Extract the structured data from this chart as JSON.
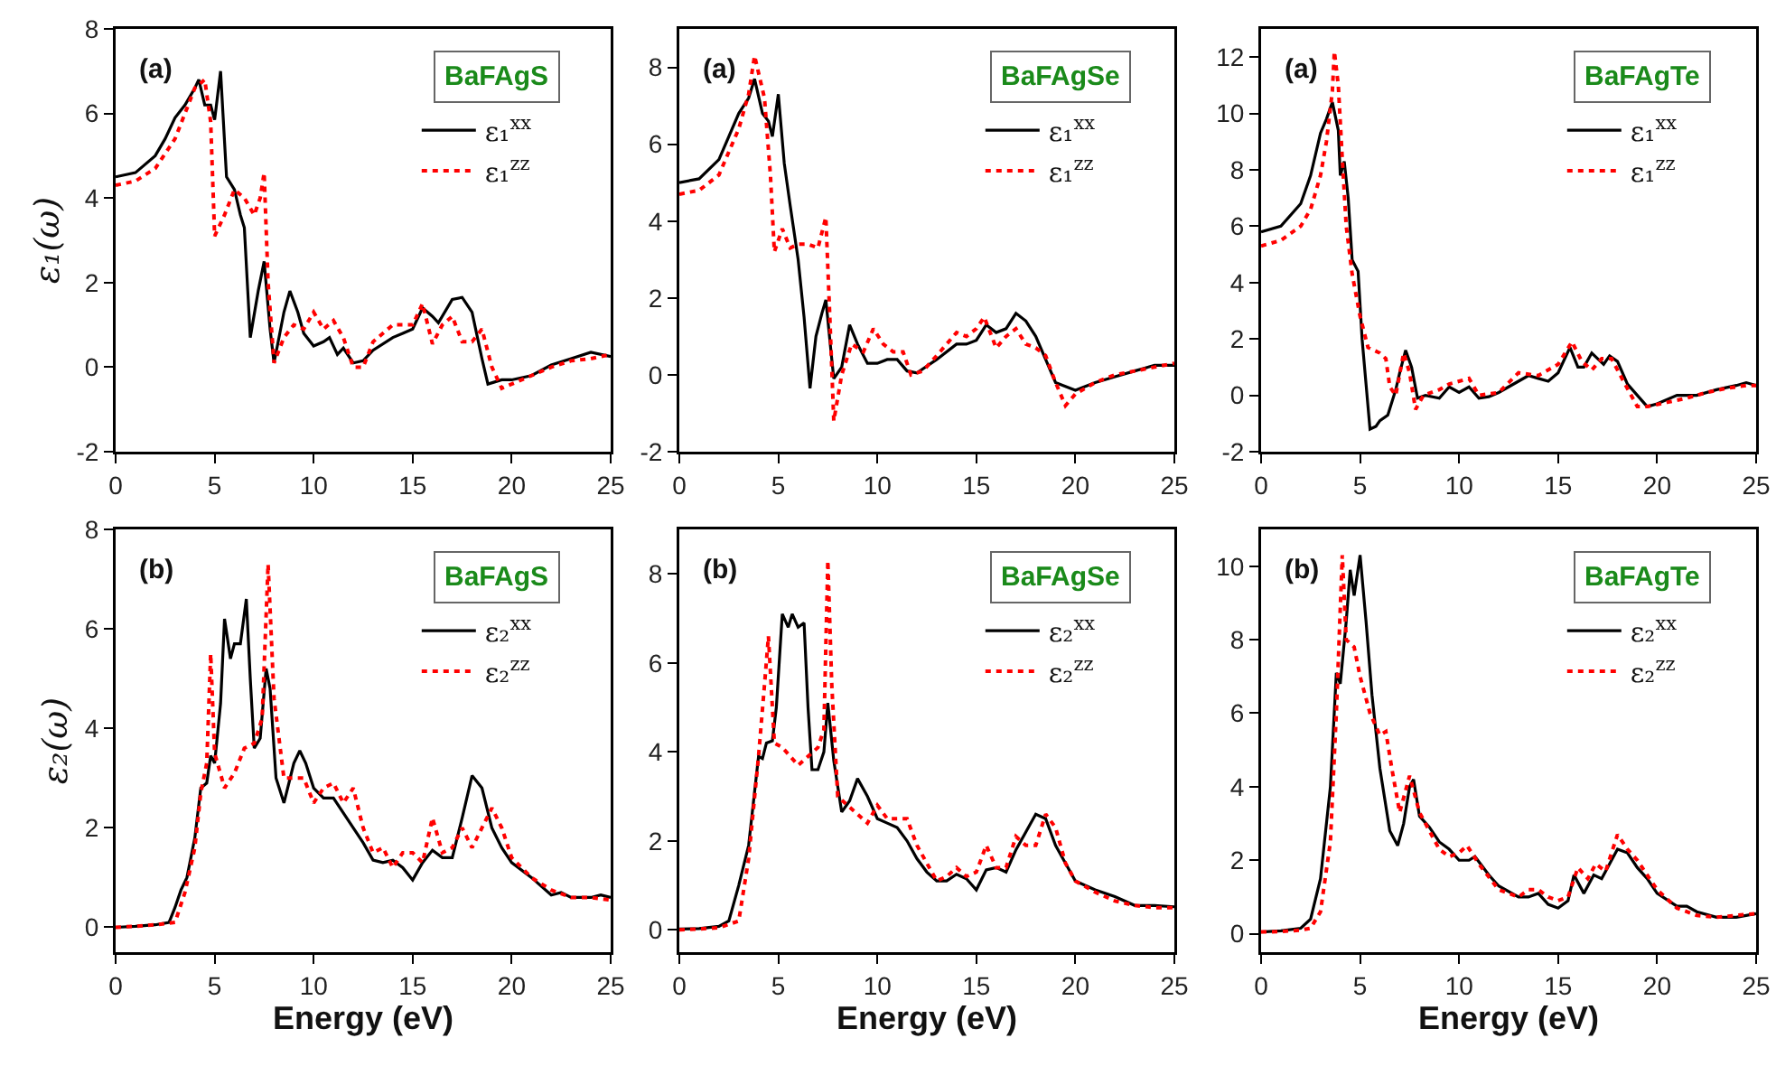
{
  "chart_data": [
    {
      "type": "line",
      "ylabel": "ε₁(ω)",
      "annotations": [
        "(a)",
        "BaFAgS"
      ],
      "xlim": [
        0,
        25
      ],
      "xticks": [
        0,
        5,
        10,
        15,
        20,
        25
      ],
      "ylim": [
        -2,
        8
      ],
      "yticks": [
        -2,
        0,
        2,
        4,
        6,
        8
      ],
      "grid": false,
      "legend": "top right",
      "series": [
        {
          "name": "ε₁$^{xx}$",
          "color": "#000000",
          "line_style": "solid",
          "x": [
            0,
            1,
            2,
            2.5,
            3,
            3.5,
            4,
            4.2,
            4.5,
            4.8,
            5,
            5.3,
            5.6,
            6,
            6.3,
            6.5,
            6.8,
            7.2,
            7.5,
            7.8,
            8,
            8.5,
            8.8,
            9.2,
            9.5,
            10,
            10.5,
            10.8,
            11.2,
            11.5,
            12,
            12.5,
            13,
            14,
            14.5,
            15,
            15.5,
            16,
            16.3,
            17,
            17.5,
            18,
            18.5,
            18.8,
            19.5,
            20,
            21,
            22,
            23,
            24,
            25
          ],
          "values": [
            4.5,
            4.6,
            5.0,
            5.4,
            5.9,
            6.2,
            6.6,
            6.8,
            6.2,
            6.2,
            5.85,
            7.0,
            4.5,
            4.2,
            3.6,
            3.3,
            0.7,
            1.8,
            2.5,
            0.9,
            0.1,
            1.3,
            1.8,
            1.3,
            0.8,
            0.5,
            0.6,
            0.7,
            0.3,
            0.45,
            0.1,
            0.15,
            0.4,
            0.7,
            0.8,
            0.9,
            1.4,
            1.2,
            1.05,
            1.6,
            1.65,
            1.3,
            0.2,
            -0.4,
            -0.3,
            -0.3,
            -0.2,
            0.05,
            0.2,
            0.35,
            0.25
          ]
        },
        {
          "name": "ε₁$^{zz}$",
          "color": "#ff0000",
          "line_style": "dotted",
          "x": [
            0,
            1,
            2,
            3,
            3.5,
            4,
            4.5,
            4.8,
            5,
            5.5,
            6,
            6.5,
            7,
            7.3,
            7.5,
            7.7,
            8,
            8.5,
            9,
            9.5,
            10,
            10.5,
            11,
            11.5,
            12,
            12.5,
            13,
            14,
            14.5,
            15,
            15.5,
            16,
            16.5,
            17,
            17.5,
            18,
            18.5,
            19,
            19.5,
            20,
            21,
            22,
            23,
            24,
            25
          ],
          "values": [
            4.3,
            4.4,
            4.7,
            5.4,
            6.0,
            6.6,
            6.8,
            5.8,
            3.1,
            3.6,
            4.2,
            4.0,
            3.6,
            4.0,
            4.6,
            2.0,
            0.1,
            0.7,
            1.0,
            0.9,
            1.3,
            0.9,
            1.1,
            0.7,
            0.0,
            0.0,
            0.6,
            1.0,
            1.0,
            1.0,
            1.5,
            0.55,
            1.0,
            1.2,
            0.6,
            0.6,
            0.9,
            0.0,
            -0.5,
            -0.4,
            -0.2,
            0.0,
            0.15,
            0.2,
            0.3
          ]
        }
      ]
    },
    {
      "type": "line",
      "annotations": [
        "(a)",
        "BaFAgSe"
      ],
      "xlim": [
        0,
        25
      ],
      "xticks": [
        0,
        5,
        10,
        15,
        20,
        25
      ],
      "ylim": [
        -2,
        9
      ],
      "yticks": [
        -2,
        0,
        2,
        4,
        6,
        8
      ],
      "grid": false,
      "legend": "top right",
      "series": [
        {
          "name": "ε₁$^{xx}$",
          "color": "#000000",
          "line_style": "solid",
          "x": [
            0,
            1,
            2,
            2.5,
            3,
            3.5,
            3.8,
            4.2,
            4.5,
            4.7,
            5,
            5.3,
            5.6,
            6,
            6.3,
            6.6,
            6.9,
            7.2,
            7.4,
            7.7,
            7.8,
            8.2,
            8.6,
            9,
            9.5,
            10,
            10.5,
            11,
            11.5,
            12,
            13,
            14,
            14.5,
            15,
            15.5,
            16,
            16.5,
            17,
            17.5,
            18,
            18.5,
            19,
            19.5,
            20,
            21,
            22,
            23,
            24,
            25
          ],
          "values": [
            5.0,
            5.1,
            5.6,
            6.2,
            6.8,
            7.2,
            7.7,
            6.8,
            6.6,
            6.2,
            7.3,
            5.5,
            4.4,
            3.0,
            1.5,
            -0.35,
            1.0,
            1.6,
            1.95,
            0.4,
            -0.1,
            0.2,
            1.3,
            0.8,
            0.3,
            0.3,
            0.4,
            0.4,
            0.1,
            0.05,
            0.4,
            0.8,
            0.8,
            0.9,
            1.3,
            1.1,
            1.2,
            1.6,
            1.4,
            1.0,
            0.4,
            -0.2,
            -0.3,
            -0.4,
            -0.2,
            -0.05,
            0.1,
            0.25,
            0.25
          ]
        },
        {
          "name": "ε₁$^{zz}$",
          "color": "#ff0000",
          "line_style": "dotted",
          "x": [
            0,
            1,
            2,
            3,
            3.5,
            3.8,
            4.3,
            4.6,
            4.8,
            5.2,
            5.6,
            6,
            6.5,
            7,
            7.4,
            7.6,
            7.8,
            8.2,
            8.7,
            9.3,
            9.8,
            10.3,
            10.8,
            11.3,
            11.7,
            12.3,
            13,
            14,
            14.5,
            15,
            15.4,
            16,
            16.5,
            17,
            17.5,
            18,
            18.5,
            19,
            19.5,
            20,
            21,
            22,
            23,
            24,
            25
          ],
          "values": [
            4.7,
            4.8,
            5.2,
            6.4,
            7.3,
            8.3,
            7.2,
            5.2,
            3.2,
            3.8,
            3.3,
            3.4,
            3.4,
            3.3,
            4.1,
            1.5,
            -1.2,
            0.0,
            0.8,
            0.6,
            1.2,
            0.8,
            0.6,
            0.6,
            0.0,
            0.1,
            0.5,
            1.1,
            1.0,
            1.2,
            1.5,
            0.7,
            1.0,
            1.2,
            0.8,
            0.7,
            0.5,
            -0.2,
            -0.8,
            -0.5,
            -0.2,
            0.0,
            0.1,
            0.2,
            0.3
          ]
        }
      ]
    },
    {
      "type": "line",
      "annotations": [
        "(a)",
        "BaFAgTe"
      ],
      "xlim": [
        0,
        25
      ],
      "xticks": [
        0,
        5,
        10,
        15,
        20,
        25
      ],
      "ylim": [
        -2,
        13
      ],
      "yticks": [
        -2,
        0,
        2,
        4,
        6,
        8,
        10,
        12
      ],
      "grid": false,
      "legend": "top right",
      "series": [
        {
          "name": "ε₁$^{xx}$",
          "color": "#000000",
          "line_style": "solid",
          "x": [
            0,
            1,
            2,
            2.5,
            3,
            3.3,
            3.6,
            3.9,
            4.0,
            4.2,
            4.4,
            4.6,
            4.9,
            5.1,
            5.5,
            5.8,
            6.0,
            6.4,
            6.8,
            7.0,
            7.3,
            7.6,
            7.9,
            8.3,
            9.0,
            9.5,
            10.0,
            10.5,
            11.0,
            11.5,
            12.0,
            13.0,
            13.5,
            14.0,
            14.5,
            15.0,
            15.6,
            16.0,
            16.3,
            16.7,
            17.0,
            17.3,
            17.6,
            18.0,
            18.5,
            19.5,
            20.0,
            21.0,
            22.0,
            23.0,
            24.0,
            24.5,
            25.0
          ],
          "values": [
            5.8,
            6.0,
            6.8,
            7.8,
            9.3,
            9.8,
            10.4,
            9.4,
            7.8,
            8.3,
            7.0,
            4.8,
            4.4,
            2.0,
            -1.2,
            -1.1,
            -0.9,
            -0.7,
            0.2,
            0.8,
            1.6,
            1.0,
            -0.1,
            0.0,
            -0.1,
            0.3,
            0.1,
            0.3,
            -0.1,
            -0.05,
            0.1,
            0.5,
            0.7,
            0.6,
            0.5,
            0.8,
            1.7,
            1.0,
            1.0,
            1.5,
            1.3,
            1.1,
            1.4,
            1.2,
            0.4,
            -0.4,
            -0.3,
            0.0,
            0.0,
            0.2,
            0.35,
            0.45,
            0.35
          ]
        },
        {
          "name": "ε₁$^{zz}$",
          "color": "#ff0000",
          "line_style": "dotted",
          "x": [
            0,
            1,
            2,
            2.5,
            3.0,
            3.3,
            3.6,
            3.7,
            3.9,
            4.1,
            4.3,
            4.6,
            5.0,
            5.4,
            6.0,
            6.3,
            6.5,
            6.8,
            7.2,
            7.5,
            7.8,
            8.2,
            9.0,
            9.5,
            10.0,
            10.5,
            11.0,
            12.0,
            13.0,
            14.0,
            15.0,
            15.7,
            16.2,
            16.7,
            17.2,
            17.7,
            18.3,
            19.0,
            19.5,
            20.5,
            21.5,
            22.5,
            23.5,
            24.5,
            25.0
          ],
          "values": [
            5.3,
            5.5,
            6.0,
            6.6,
            7.8,
            9.0,
            10.8,
            12.2,
            11.0,
            8.4,
            6.0,
            4.3,
            2.8,
            1.7,
            1.5,
            1.3,
            0.3,
            0.0,
            1.5,
            0.8,
            -0.5,
            0.0,
            0.2,
            0.4,
            0.5,
            0.6,
            0.0,
            0.1,
            0.8,
            0.7,
            1.1,
            1.9,
            1.2,
            0.9,
            1.3,
            1.3,
            0.5,
            -0.4,
            -0.4,
            -0.25,
            -0.1,
            0.1,
            0.25,
            0.35,
            0.35
          ]
        }
      ]
    },
    {
      "type": "line",
      "xlabel": "Energy (eV)",
      "ylabel": "ε₂(ω)",
      "annotations": [
        "(b)",
        "BaFAgS"
      ],
      "xlim": [
        0,
        25
      ],
      "xticks": [
        0,
        5,
        10,
        15,
        20,
        25
      ],
      "ylim": [
        -0.5,
        8
      ],
      "yticks": [
        0,
        2,
        4,
        6,
        8
      ],
      "grid": false,
      "legend": "top right",
      "series": [
        {
          "name": "ε₂$^{xx}$",
          "color": "#000000",
          "line_style": "solid",
          "x": [
            0,
            1,
            2,
            2.7,
            3,
            3.3,
            3.6,
            4,
            4.3,
            4.6,
            4.8,
            5,
            5.3,
            5.5,
            5.8,
            6.0,
            6.3,
            6.6,
            6.8,
            7.0,
            7.3,
            7.6,
            7.8,
            8.1,
            8.5,
            9.0,
            9.3,
            9.6,
            10.0,
            10.5,
            11.0,
            11.5,
            12.0,
            12.5,
            13.0,
            13.5,
            14.0,
            14.5,
            15.0,
            15.5,
            16.0,
            16.5,
            17.0,
            17.5,
            18.0,
            18.5,
            19.0,
            19.5,
            20.0,
            21.0,
            22.0,
            22.5,
            23.0,
            24.0,
            24.5,
            25.0
          ],
          "values": [
            0.0,
            0.02,
            0.05,
            0.1,
            0.4,
            0.75,
            1.0,
            1.8,
            2.8,
            2.9,
            3.45,
            3.3,
            4.5,
            6.2,
            5.4,
            5.7,
            5.7,
            6.6,
            5.0,
            3.6,
            3.8,
            5.2,
            4.8,
            3.0,
            2.5,
            3.3,
            3.55,
            3.3,
            2.8,
            2.6,
            2.6,
            2.3,
            2.0,
            1.7,
            1.35,
            1.3,
            1.35,
            1.2,
            0.95,
            1.3,
            1.55,
            1.4,
            1.4,
            2.2,
            3.05,
            2.8,
            2.0,
            1.6,
            1.3,
            1.0,
            0.65,
            0.7,
            0.6,
            0.6,
            0.65,
            0.6
          ]
        },
        {
          "name": "ε₂$^{zz}$",
          "color": "#ff0000",
          "line_style": "dotted",
          "x": [
            0,
            1,
            2,
            3,
            3.5,
            4.0,
            4.3,
            4.6,
            4.8,
            5.0,
            5.5,
            6.0,
            6.5,
            7.0,
            7.4,
            7.7,
            8.0,
            8.5,
            9.0,
            9.5,
            10.0,
            10.5,
            11.0,
            11.5,
            12.0,
            12.5,
            13.0,
            13.5,
            14.0,
            14.5,
            15.0,
            15.5,
            16.0,
            16.5,
            17.0,
            17.5,
            18.0,
            18.5,
            19.0,
            19.5,
            20.0,
            21.0,
            22.0,
            23.0,
            24.0,
            25.0
          ],
          "values": [
            0.0,
            0.02,
            0.05,
            0.1,
            0.7,
            1.6,
            2.7,
            3.3,
            5.5,
            3.5,
            2.8,
            3.1,
            3.6,
            3.7,
            4.2,
            7.3,
            4.6,
            3.0,
            3.0,
            3.0,
            2.5,
            2.8,
            2.9,
            2.5,
            2.8,
            2.0,
            1.5,
            1.6,
            1.2,
            1.5,
            1.5,
            1.3,
            2.2,
            1.5,
            1.6,
            2.0,
            1.6,
            2.0,
            2.4,
            2.0,
            1.4,
            1.0,
            0.75,
            0.6,
            0.6,
            0.55
          ]
        }
      ]
    },
    {
      "type": "line",
      "xlabel": "Energy (eV)",
      "annotations": [
        "(b)",
        "BaFAgSe"
      ],
      "xlim": [
        0,
        25
      ],
      "xticks": [
        0,
        5,
        10,
        15,
        20,
        25
      ],
      "ylim": [
        -0.5,
        9
      ],
      "yticks": [
        0,
        2,
        4,
        6,
        8
      ],
      "grid": false,
      "legend": "top right",
      "series": [
        {
          "name": "ε₂$^{xx}$",
          "color": "#000000",
          "line_style": "solid",
          "x": [
            0,
            1,
            2,
            2.5,
            3,
            3.5,
            4.0,
            4.2,
            4.4,
            4.7,
            4.9,
            5.2,
            5.5,
            5.7,
            6.0,
            6.3,
            6.5,
            6.7,
            7.0,
            7.3,
            7.5,
            7.8,
            8.2,
            8.6,
            9.0,
            9.5,
            10.0,
            10.5,
            11.0,
            11.5,
            12.0,
            12.5,
            13.0,
            13.5,
            14.0,
            14.5,
            15.0,
            15.5,
            16.0,
            16.5,
            17.0,
            17.5,
            18.0,
            18.5,
            19.0,
            19.5,
            20.0,
            21.0,
            22.0,
            23.0,
            24.0,
            25.0
          ],
          "values": [
            0.02,
            0.03,
            0.08,
            0.2,
            1.0,
            1.9,
            3.9,
            3.85,
            4.2,
            4.25,
            5.0,
            7.1,
            6.8,
            7.1,
            6.8,
            6.9,
            5.0,
            3.6,
            3.6,
            4.0,
            5.1,
            3.8,
            2.65,
            2.9,
            3.4,
            3.0,
            2.5,
            2.4,
            2.3,
            2.0,
            1.6,
            1.3,
            1.1,
            1.1,
            1.25,
            1.15,
            0.9,
            1.35,
            1.4,
            1.3,
            1.8,
            2.2,
            2.6,
            2.5,
            1.9,
            1.5,
            1.1,
            0.9,
            0.75,
            0.55,
            0.55,
            0.52
          ]
        },
        {
          "name": "ε₂$^{zz}$",
          "color": "#ff0000",
          "line_style": "dotted",
          "x": [
            0,
            1,
            2,
            3,
            3.5,
            4.0,
            4.3,
            4.5,
            4.8,
            5.2,
            5.6,
            6.0,
            6.5,
            7.0,
            7.3,
            7.5,
            7.7,
            8.0,
            8.5,
            9.0,
            9.5,
            10.0,
            10.5,
            11.0,
            11.5,
            12.0,
            12.5,
            13.0,
            13.5,
            14.0,
            14.5,
            15.0,
            15.5,
            16.0,
            16.5,
            17.0,
            17.5,
            18.0,
            18.5,
            19.0,
            19.5,
            20.0,
            21.0,
            22.0,
            23.0,
            24.0,
            25.0
          ],
          "values": [
            0.0,
            0.02,
            0.05,
            0.2,
            1.6,
            3.9,
            5.5,
            6.6,
            4.2,
            4.1,
            3.9,
            3.7,
            3.9,
            4.1,
            4.5,
            8.3,
            5.5,
            3.0,
            2.8,
            2.6,
            2.4,
            2.8,
            2.5,
            2.5,
            2.5,
            1.9,
            1.5,
            1.1,
            1.2,
            1.4,
            1.2,
            1.3,
            1.9,
            1.4,
            1.4,
            2.1,
            1.9,
            1.9,
            2.6,
            2.3,
            1.5,
            1.1,
            0.85,
            0.65,
            0.55,
            0.5,
            0.5
          ]
        }
      ]
    },
    {
      "type": "line",
      "xlabel": "Energy (eV)",
      "annotations": [
        "(b)",
        "BaFAgTe"
      ],
      "xlim": [
        0,
        25
      ],
      "xticks": [
        0,
        5,
        10,
        15,
        20,
        25
      ],
      "ylim": [
        -0.5,
        11
      ],
      "yticks": [
        0,
        2,
        4,
        6,
        8,
        10
      ],
      "grid": false,
      "legend": "top right",
      "series": [
        {
          "name": "ε₂$^{xx}$",
          "color": "#000000",
          "line_style": "solid",
          "x": [
            0,
            1,
            2,
            2.5,
            3.0,
            3.5,
            3.8,
            4.0,
            4.3,
            4.5,
            4.7,
            5.0,
            5.3,
            5.6,
            6.0,
            6.5,
            6.9,
            7.2,
            7.5,
            7.7,
            8.0,
            8.5,
            9.0,
            9.5,
            10.0,
            10.5,
            10.8,
            11.5,
            12.0,
            13.0,
            13.5,
            14.0,
            14.5,
            15.0,
            15.5,
            15.8,
            16.3,
            16.8,
            17.2,
            17.6,
            18.0,
            18.5,
            19.0,
            19.5,
            20.0,
            21.0,
            21.5,
            22.0,
            23.0,
            24.0,
            25.0
          ],
          "values": [
            0.05,
            0.08,
            0.15,
            0.4,
            1.5,
            4.0,
            7.1,
            6.8,
            8.5,
            9.9,
            9.2,
            10.3,
            8.5,
            6.5,
            4.5,
            2.8,
            2.4,
            3.0,
            4.0,
            4.2,
            3.2,
            2.9,
            2.5,
            2.3,
            2.0,
            2.0,
            2.1,
            1.6,
            1.3,
            1.0,
            1.0,
            1.1,
            0.8,
            0.7,
            0.9,
            1.6,
            1.1,
            1.6,
            1.5,
            1.9,
            2.3,
            2.2,
            1.8,
            1.5,
            1.1,
            0.75,
            0.75,
            0.6,
            0.45,
            0.45,
            0.55
          ]
        },
        {
          "name": "ε₂$^{zz}$",
          "color": "#ff0000",
          "line_style": "dotted",
          "x": [
            0,
            1,
            2,
            2.5,
            3.0,
            3.5,
            3.8,
            4.1,
            4.3,
            4.7,
            5.0,
            5.5,
            6.0,
            6.3,
            6.6,
            7.0,
            7.5,
            8.0,
            8.5,
            9.0,
            9.5,
            10.0,
            10.4,
            11.0,
            12.0,
            13.0,
            13.5,
            14.0,
            14.5,
            15.0,
            15.5,
            16.0,
            16.5,
            16.9,
            17.4,
            18.0,
            18.5,
            19.0,
            20.0,
            21.0,
            22.0,
            23.0,
            24.0,
            25.0
          ],
          "values": [
            0.05,
            0.06,
            0.1,
            0.15,
            0.6,
            2.5,
            6.0,
            10.3,
            8.0,
            7.8,
            7.0,
            6.0,
            5.4,
            5.5,
            4.5,
            3.3,
            4.3,
            3.3,
            2.8,
            2.3,
            2.1,
            2.2,
            2.4,
            1.9,
            1.2,
            1.0,
            1.2,
            1.2,
            1.0,
            0.9,
            1.0,
            1.8,
            1.5,
            1.9,
            1.7,
            2.7,
            2.3,
            2.0,
            1.2,
            0.7,
            0.5,
            0.45,
            0.5,
            0.55
          ]
        }
      ]
    }
  ]
}
